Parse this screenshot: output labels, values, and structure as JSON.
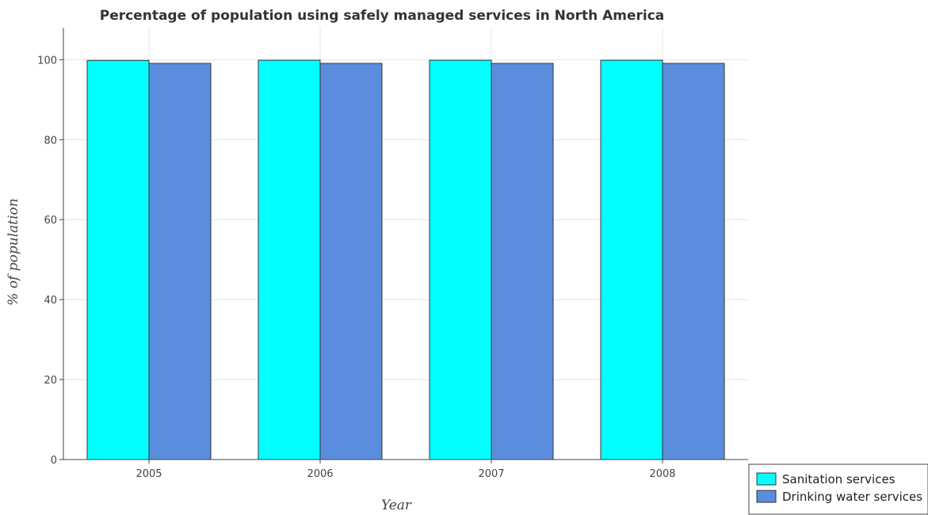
{
  "chart_data": {
    "type": "bar",
    "title": "Percentage of population using safely managed services in North America",
    "xlabel": "Year",
    "ylabel": "% of population",
    "categories": [
      "2005",
      "2006",
      "2007",
      "2008"
    ],
    "series": [
      {
        "name": "Sanitation services",
        "values": [
          99.82,
          99.87,
          99.87,
          99.87
        ],
        "color": "#00ffff"
      },
      {
        "name": "Drinking water services",
        "values": [
          99.08,
          99.08,
          99.08,
          99.08
        ],
        "color": "#5b8ddf"
      }
    ],
    "ylim": [
      0,
      108
    ],
    "yticks": [
      0,
      20,
      40,
      60,
      80,
      100
    ],
    "grid": true,
    "legend_position": "bottom-right"
  }
}
